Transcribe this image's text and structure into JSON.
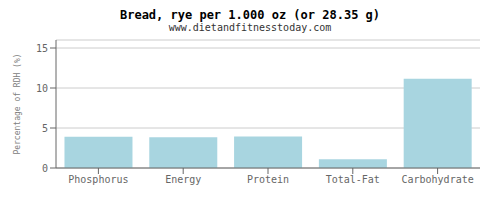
{
  "chart_data": {
    "type": "bar",
    "title": "Bread, rye per 1.000 oz (or 28.35 g)",
    "subtitle": "www.dietandfitnesstoday.com",
    "categories": [
      "Phosphorus",
      "Energy",
      "Protein",
      "Total-Fat",
      "Carbohydrate"
    ],
    "values": [
      3.9,
      3.85,
      3.95,
      1.1,
      11.15
    ],
    "color": "#a8d5e0",
    "ylabel": "Percentage of RDH (%)",
    "ylim": [
      0,
      16
    ],
    "yticks": [
      0,
      5,
      10,
      15
    ],
    "grid": true
  }
}
